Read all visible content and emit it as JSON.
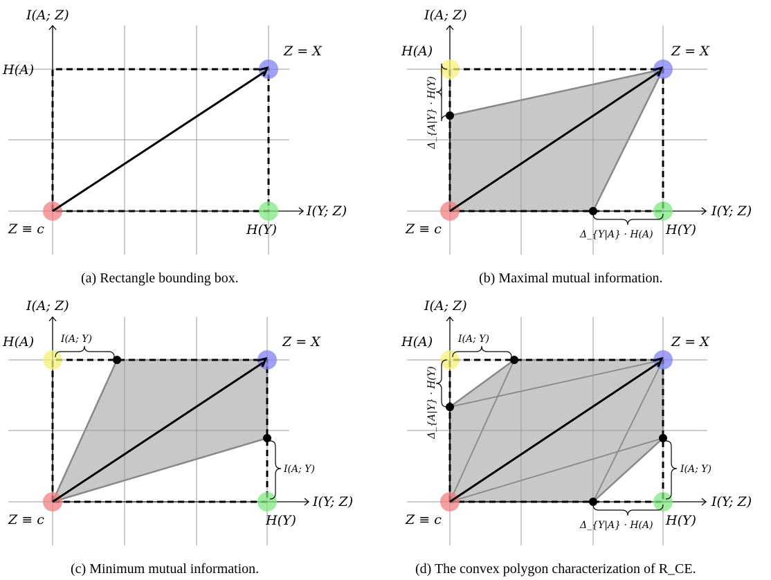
{
  "panels": [
    {
      "id": "a",
      "caption": "(a) Rectangle bounding box.",
      "y_axis_label": "I(A; Z)",
      "x_axis_label": "I(Y; Z)",
      "corner_labels": {
        "origin": "Z ≡ c",
        "top_left": "H(A)",
        "top_right": "Z = X",
        "bottom_right": "H(Y)"
      },
      "shaded_region": false,
      "extra_points": [],
      "braces": []
    },
    {
      "id": "b",
      "caption": "(b) Maximal mutual information.",
      "y_axis_label": "I(A; Z)",
      "x_axis_label": "I(Y; Z)",
      "corner_labels": {
        "origin": "Z ≡ c",
        "top_left": "H(A)",
        "top_right": "Z = X",
        "bottom_right": "H(Y)"
      },
      "shaded_region": true,
      "extra_points": [
        "left_lower",
        "bottom_right_inner"
      ],
      "braces": [
        {
          "where": "left",
          "label": "Δ_{A|Y} · H(Y)"
        },
        {
          "where": "bottom",
          "label": "Δ_{Y|A} · H(A)"
        }
      ]
    },
    {
      "id": "c",
      "caption": "(c) Minimum mutual information.",
      "y_axis_label": "I(A; Z)",
      "x_axis_label": "I(Y; Z)",
      "corner_labels": {
        "origin": "Z ≡ c",
        "top_left": "H(A)",
        "top_right": "Z = X",
        "bottom_right": "H(Y)"
      },
      "shaded_region": true,
      "extra_points": [
        "top_inner",
        "right_inner"
      ],
      "braces": [
        {
          "where": "top",
          "label": "I(A; Y)"
        },
        {
          "where": "right",
          "label": "I(A; Y)"
        }
      ]
    },
    {
      "id": "d",
      "caption": "(d) The convex polygon characterization of R_CE.",
      "y_axis_label": "I(A; Z)",
      "x_axis_label": "I(Y; Z)",
      "corner_labels": {
        "origin": "Z ≡ c",
        "top_left": "H(A)",
        "top_right": "Z = X",
        "bottom_right": "H(Y)"
      },
      "shaded_region": true,
      "extra_points": [
        "left_lower",
        "bottom_right_inner",
        "top_inner",
        "right_inner"
      ],
      "braces": [
        {
          "where": "top",
          "label": "I(A; Y)"
        },
        {
          "where": "left",
          "label": "Δ_{A|Y} · H(Y)"
        },
        {
          "where": "right",
          "label": "I(A; Y)"
        },
        {
          "where": "bottom",
          "label": "Δ_{Y|A} · H(A)"
        }
      ]
    }
  ],
  "colors": {
    "origin_marker": "#f08080",
    "top_left_marker": "#f5f07a",
    "top_right_marker": "#8080f0",
    "bottom_right_marker": "#80e680",
    "shade": "#c8c8c8",
    "grid": "#999999"
  }
}
